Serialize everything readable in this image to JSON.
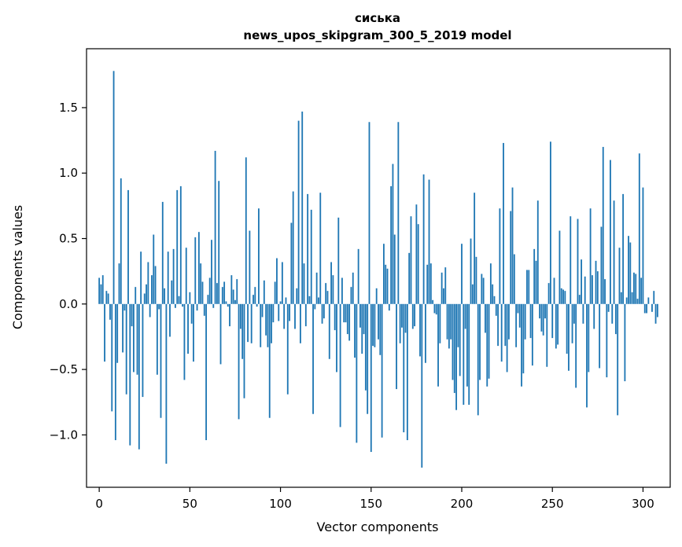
{
  "chart_data": {
    "type": "bar",
    "title": "сиська",
    "subtitle": "news_upos_skipgram_300_5_2019 model",
    "xlabel": "Vector components",
    "ylabel": "Components values",
    "xlim": [
      -7,
      315
    ],
    "ylim": [
      -1.4,
      1.95
    ],
    "xticks": [
      0,
      50,
      100,
      150,
      200,
      250,
      300
    ],
    "yticks": [
      -1.0,
      -0.5,
      0.0,
      0.5,
      1.0,
      1.5
    ],
    "ytick_labels": [
      "−1.0",
      "−0.5",
      "0.0",
      "0.5",
      "1.0",
      "1.5"
    ],
    "grid": false,
    "bar_color": "#1f77b4",
    "values": [
      0.2,
      0.15,
      0.22,
      -0.44,
      0.1,
      0.08,
      -0.12,
      -0.82,
      1.78,
      -1.04,
      -0.45,
      0.31,
      0.96,
      -0.37,
      -0.05,
      -0.69,
      0.87,
      -1.08,
      -0.17,
      -0.52,
      0.13,
      -0.54,
      -1.11,
      0.4,
      -0.71,
      0.08,
      0.15,
      0.32,
      -0.1,
      0.22,
      0.53,
      0.29,
      -0.54,
      -0.04,
      -0.87,
      0.78,
      0.12,
      -1.22,
      0.4,
      -0.25,
      0.18,
      0.42,
      -0.03,
      0.87,
      0.06,
      0.9,
      -0.02,
      -0.58,
      0.43,
      -0.38,
      0.09,
      -0.15,
      -0.44,
      0.51,
      -0.05,
      0.55,
      0.31,
      0.17,
      -0.09,
      -1.04,
      0.07,
      0.2,
      0.49,
      -0.03,
      1.17,
      0.16,
      0.94,
      -0.46,
      0.13,
      0.17,
      0.02,
      -0.02,
      -0.17,
      0.22,
      0.11,
      0.03,
      0.19,
      -0.88,
      -0.19,
      -0.42,
      -0.72,
      1.12,
      -0.29,
      0.56,
      -0.3,
      0.07,
      0.13,
      -0.02,
      0.73,
      -0.33,
      -0.1,
      0.18,
      -0.24,
      -0.33,
      -0.87,
      -0.3,
      -0.14,
      0.17,
      0.35,
      -0.13,
      0.02,
      0.32,
      -0.19,
      0.05,
      -0.69,
      -0.13,
      0.62,
      0.86,
      -0.19,
      0.12,
      1.4,
      -0.3,
      1.47,
      0.31,
      -0.17,
      0.84,
      0.06,
      0.72,
      -0.84,
      -0.04,
      0.24,
      0.05,
      0.85,
      -0.15,
      -0.11,
      0.16,
      0.1,
      -0.42,
      0.32,
      0.22,
      -0.2,
      -0.52,
      0.66,
      -0.94,
      0.2,
      -0.14,
      -0.14,
      -0.23,
      -0.28,
      0.13,
      0.24,
      -0.41,
      -1.06,
      0.42,
      -0.18,
      -0.38,
      -0.23,
      -0.66,
      -0.84,
      1.39,
      -1.13,
      -0.32,
      -0.33,
      0.12,
      -0.27,
      -0.39,
      -1.02,
      0.46,
      0.3,
      0.27,
      -0.05,
      0.9,
      1.07,
      0.53,
      -0.65,
      1.39,
      -0.3,
      -0.18,
      -0.98,
      -0.22,
      -1.04,
      0.39,
      0.67,
      -0.19,
      -0.17,
      0.76,
      0.61,
      -0.4,
      -1.25,
      0.99,
      -0.45,
      0.3,
      0.95,
      0.31,
      0.03,
      -0.07,
      -0.08,
      -0.63,
      -0.3,
      0.24,
      0.12,
      0.28,
      -0.27,
      -0.34,
      -0.27,
      -0.58,
      -0.68,
      -0.81,
      -0.33,
      -0.55,
      0.46,
      -0.77,
      -0.19,
      -0.63,
      -0.77,
      0.5,
      0.15,
      0.85,
      0.36,
      -0.85,
      -0.58,
      0.23,
      0.2,
      -0.22,
      -0.63,
      -0.57,
      0.31,
      0.15,
      0.06,
      -0.09,
      -0.32,
      0.73,
      -0.44,
      1.23,
      -0.32,
      -0.52,
      -0.27,
      0.71,
      0.89,
      0.38,
      -0.33,
      -0.07,
      -0.18,
      -0.63,
      -0.53,
      -0.27,
      0.26,
      0.26,
      -0.26,
      -0.47,
      0.42,
      0.33,
      0.79,
      -0.11,
      -0.21,
      -0.24,
      -0.11,
      -0.48,
      0.16,
      1.24,
      -0.26,
      0.2,
      -0.34,
      -0.31,
      0.56,
      0.12,
      0.11,
      0.1,
      -0.38,
      -0.51,
      0.67,
      -0.3,
      -0.15,
      -0.64,
      0.65,
      0.07,
      0.34,
      -0.15,
      0.21,
      -0.79,
      -0.52,
      0.73,
      0.22,
      -0.19,
      0.33,
      0.25,
      -0.49,
      0.59,
      1.2,
      0.19,
      -0.56,
      -0.06,
      1.1,
      -0.15,
      0.79,
      -0.23,
      -0.85,
      0.43,
      0.09,
      0.84,
      -0.59,
      0.05,
      0.52,
      0.47,
      0.09,
      0.24,
      0.23,
      0.04,
      1.15,
      0.2,
      0.89,
      -0.07,
      -0.07,
      0.05,
      0.0,
      -0.06,
      0.1,
      -0.15,
      -0.1
    ]
  }
}
